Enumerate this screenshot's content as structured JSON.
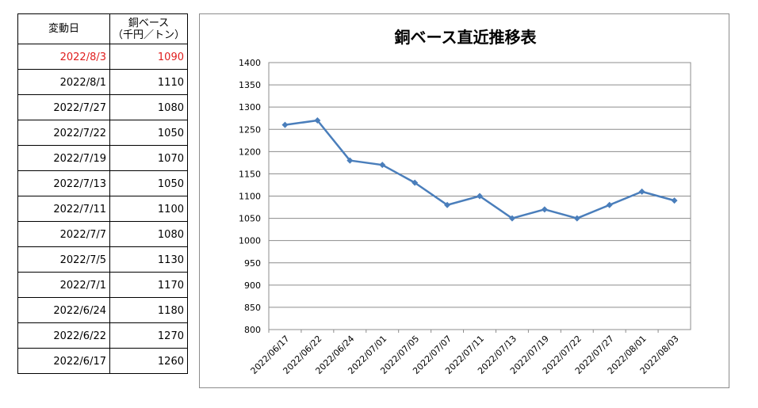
{
  "table": {
    "header_date": "変動日",
    "header_price_line1": "銅ベース",
    "header_price_line2": "（千円／トン）",
    "rows": [
      {
        "date": "2022/8/3",
        "price": "1090"
      },
      {
        "date": "2022/8/1",
        "price": "1110"
      },
      {
        "date": "2022/7/27",
        "price": "1080"
      },
      {
        "date": "2022/7/22",
        "price": "1050"
      },
      {
        "date": "2022/7/19",
        "price": "1070"
      },
      {
        "date": "2022/7/13",
        "price": "1050"
      },
      {
        "date": "2022/7/11",
        "price": "1100"
      },
      {
        "date": "2022/7/7",
        "price": "1080"
      },
      {
        "date": "2022/7/5",
        "price": "1130"
      },
      {
        "date": "2022/7/1",
        "price": "1170"
      },
      {
        "date": "2022/6/24",
        "price": "1180"
      },
      {
        "date": "2022/6/22",
        "price": "1270"
      },
      {
        "date": "2022/6/17",
        "price": "1260"
      }
    ],
    "latest_color": "#e01e1e"
  },
  "chart_data": {
    "type": "line",
    "title": "銅ベース直近推移表",
    "categories": [
      "2022/06/17",
      "2022/06/22",
      "2022/06/24",
      "2022/07/01",
      "2022/07/05",
      "2022/07/07",
      "2022/07/11",
      "2022/07/13",
      "2022/07/19",
      "2022/07/22",
      "2022/07/27",
      "2022/08/01",
      "2022/08/03"
    ],
    "series": [
      {
        "values": [
          1260,
          1270,
          1180,
          1170,
          1130,
          1080,
          1100,
          1050,
          1070,
          1050,
          1080,
          1110,
          1090
        ],
        "color": "#4a7ebb",
        "marker": "diamond"
      }
    ],
    "xlabel": "",
    "ylabel": "",
    "ylim": [
      800,
      1400
    ],
    "ytick_step": 50,
    "grid": true,
    "legend": "none"
  }
}
